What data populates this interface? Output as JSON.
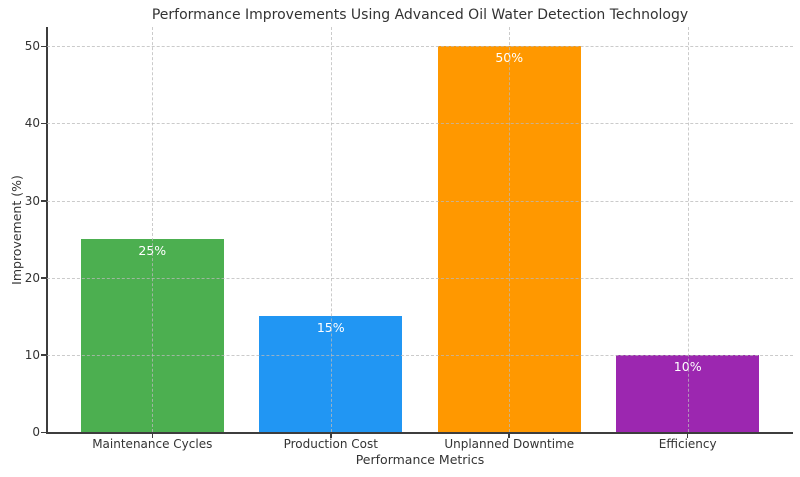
{
  "figure": {
    "title": "Performance Improvements Using Advanced Oil Water Detection Technology"
  },
  "chart_data": {
    "type": "bar",
    "title": "Performance Improvements Using Advanced Oil Water Detection Technology",
    "xlabel": "Performance Metrics",
    "ylabel": "Improvement (%)",
    "categories": [
      "Maintenance Cycles",
      "Production Cost",
      "Unplanned Downtime",
      "Efficiency"
    ],
    "values": [
      25,
      15,
      50,
      10
    ],
    "bar_labels": [
      "25%",
      "15%",
      "50%",
      "10%"
    ],
    "bar_colors": [
      "#4caf50",
      "#2196f3",
      "#ff9800",
      "#9c27b0"
    ],
    "bar_label_color": "#ffffff",
    "ylim": [
      0,
      52.5
    ],
    "yticks": [
      0,
      10,
      20,
      30,
      40,
      50
    ],
    "grid": "both",
    "grid_style": "dashed",
    "grid_color": "#cccccc",
    "axis_color": "#3d3d3d",
    "text_color": "#333333",
    "background": "#ffffff",
    "legend_position": "none"
  }
}
